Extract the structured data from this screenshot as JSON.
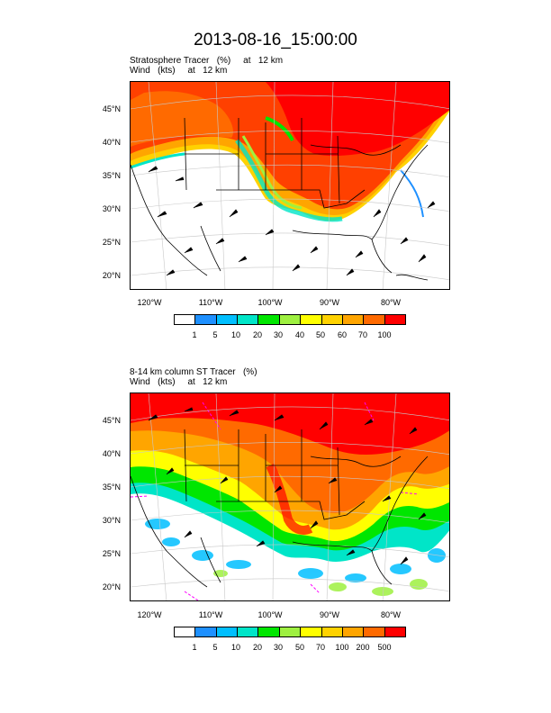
{
  "page_title": "2013-08-16_15:00:00",
  "panels": [
    {
      "line1": "Stratosphere Tracer   (%)     at   12 km",
      "line2": "Wind   (kts)     at   12 km",
      "lat_labels": [
        "45°N",
        "40°N",
        "35°N",
        "30°N",
        "25°N",
        "20°N"
      ],
      "lon_labels": [
        "120°W",
        "110°W",
        "100°W",
        "90°W",
        "80°W"
      ],
      "colorbar_labels": [
        "1",
        "5",
        "10",
        "20",
        "30",
        "40",
        "50",
        "60",
        "70",
        "100"
      ]
    },
    {
      "line1": "8-14 km column ST Tracer   (%)",
      "line2": "Wind   (kts)     at   12 km",
      "lat_labels": [
        "45°N",
        "40°N",
        "35°N",
        "30°N",
        "25°N",
        "20°N"
      ],
      "lon_labels": [
        "120°W",
        "110°W",
        "100°W",
        "90°W",
        "80°W"
      ],
      "colorbar_labels": [
        "1",
        "5",
        "10",
        "20",
        "30",
        "50",
        "70",
        "100",
        "200",
        "500"
      ]
    }
  ],
  "colorbar_colors": [
    "#ffffff",
    "#1e90ff",
    "#00bfff",
    "#00e5c8",
    "#00e600",
    "#9ef040",
    "#ffff00",
    "#ffd200",
    "#ffa500",
    "#ff6a00",
    "#ff0000"
  ]
}
